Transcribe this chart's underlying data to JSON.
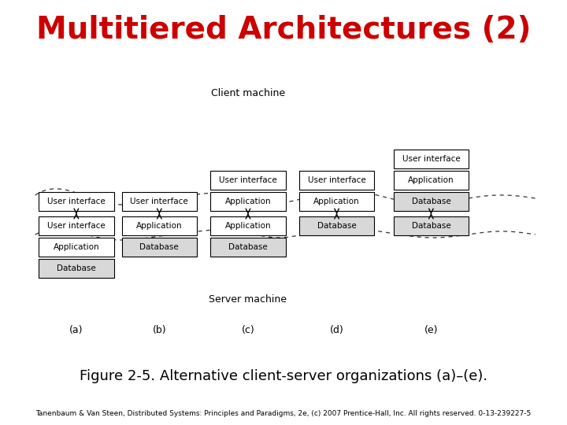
{
  "title": "Multitiered Architectures (2)",
  "title_color": "#cc0000",
  "title_fontsize": 28,
  "figure_caption": "Figure 2-5. Alternative client-server organizations (a)–(e).",
  "footnote": "Tanenbaum & Van Steen, Distributed Systems: Principles and Paradigms, 2e, (c) 2007 Prentice-Hall, Inc. All rights reserved. 0-13-239227-5",
  "bg_color": "#ffffff",
  "box_color": "#ffffff",
  "box_edge": "#000000",
  "client_label": "Client machine",
  "server_label": "Server machine",
  "labels_ab": [
    "(a)",
    "(b)",
    "(c)",
    "(d)",
    "(e)"
  ],
  "columns": [
    {
      "id": "a",
      "client_boxes": [
        "User interface"
      ],
      "server_boxes": [
        "User interface",
        "Application",
        "Database"
      ],
      "split_after_client": 0
    },
    {
      "id": "b",
      "client_boxes": [
        "User interface"
      ],
      "server_boxes": [
        "Application",
        "Database"
      ],
      "split_after_client": 0
    },
    {
      "id": "c",
      "client_boxes": [
        "User interface",
        "Application"
      ],
      "server_boxes": [
        "Application",
        "Database"
      ],
      "split_after_client": 1
    },
    {
      "id": "d",
      "client_boxes": [
        "User interface",
        "Application"
      ],
      "server_boxes": [
        "Database"
      ],
      "split_after_client": 1
    },
    {
      "id": "e",
      "client_boxes": [
        "User interface",
        "Application",
        "Database"
      ],
      "server_boxes": [
        "Database"
      ],
      "split_after_client": 2
    }
  ]
}
